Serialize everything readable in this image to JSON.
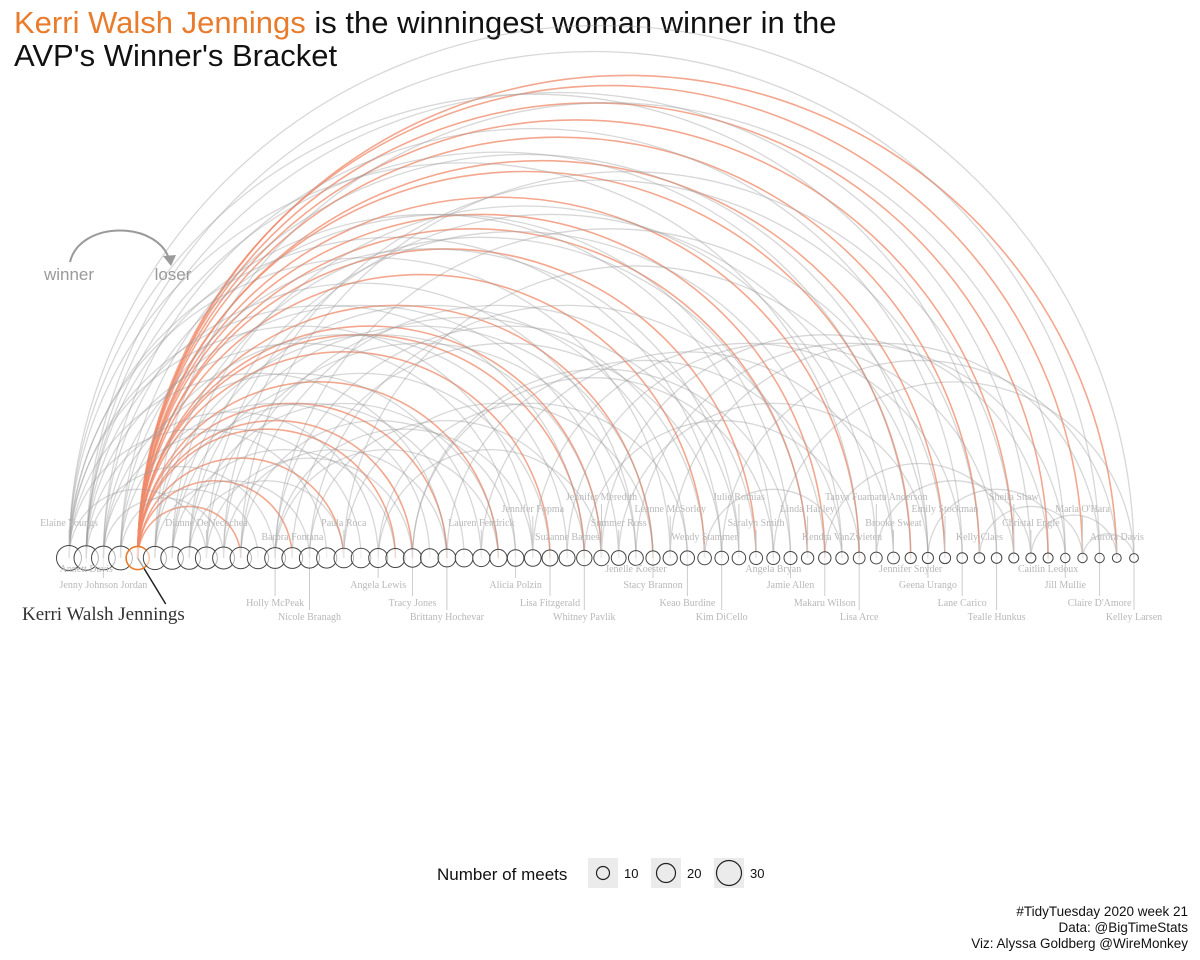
{
  "title": {
    "highlight": "Kerri Walsh Jennings",
    "rest_line1": " is the winningest woman winner in the",
    "line2": "AVP's Winner's Bracket"
  },
  "key": {
    "winner": "winner",
    "loser": "loser"
  },
  "legend": {
    "title": "Number of meets",
    "entries": [
      10,
      20,
      30
    ]
  },
  "caption": {
    "line1": "#TidyTuesday 2020 week 21",
    "line2": "Data: @BigTimeStats",
    "line3": "Viz: Alyssa Goldberg @WireMonkey"
  },
  "colors": {
    "highlight": "#e87c2c",
    "arc_highlight": "#f08a6a",
    "arc": "#9a9a9a",
    "node": "#444444",
    "label": "#b8b8b8"
  },
  "chart_data": {
    "type": "arc-diagram",
    "highlighted_player": "Kerri Walsh Jennings",
    "players": [
      {
        "name": "Elaine Youngs",
        "meets": 30
      },
      {
        "name": "Annett Davis",
        "meets": 29
      },
      {
        "name": "Jenny Johnson Jordan",
        "meets": 28
      },
      {
        "name": "",
        "meets": 28
      },
      {
        "name": "Kerri Walsh Jennings",
        "meets": 27
      },
      {
        "name": "",
        "meets": 27
      },
      {
        "name": "",
        "meets": 26
      },
      {
        "name": "",
        "meets": 26
      },
      {
        "name": "Dianne DeNecochea",
        "meets": 25
      },
      {
        "name": "",
        "meets": 25
      },
      {
        "name": "",
        "meets": 24
      },
      {
        "name": "",
        "meets": 24
      },
      {
        "name": "Holly McPeak",
        "meets": 23
      },
      {
        "name": "Barbra Fontana",
        "meets": 23
      },
      {
        "name": "Nicole Branagh",
        "meets": 22
      },
      {
        "name": "",
        "meets": 22
      },
      {
        "name": "Paula Roca",
        "meets": 21
      },
      {
        "name": "",
        "meets": 21
      },
      {
        "name": "Angela Lewis",
        "meets": 20
      },
      {
        "name": "",
        "meets": 20
      },
      {
        "name": "Tracy Jones",
        "meets": 19
      },
      {
        "name": "",
        "meets": 19
      },
      {
        "name": "Brittany Hochevar",
        "meets": 18
      },
      {
        "name": "",
        "meets": 18
      },
      {
        "name": "Lauren Fendrick",
        "meets": 17
      },
      {
        "name": "",
        "meets": 17
      },
      {
        "name": "Alicia Polzin",
        "meets": 16
      },
      {
        "name": "Jennifer Fopma",
        "meets": 16
      },
      {
        "name": "Lisa Fitzgerald",
        "meets": 15
      },
      {
        "name": "Suzanne Barnes",
        "meets": 15
      },
      {
        "name": "Whitney Pavlik",
        "meets": 14
      },
      {
        "name": "Jennifer Meredith",
        "meets": 14
      },
      {
        "name": "Summer Ross",
        "meets": 13
      },
      {
        "name": "Jenelle Koester",
        "meets": 13
      },
      {
        "name": "Stacy Brannon",
        "meets": 12
      },
      {
        "name": "Leanne McSorley",
        "meets": 12
      },
      {
        "name": "Keao Burdine",
        "meets": 12
      },
      {
        "name": "Wendy Stammer",
        "meets": 11
      },
      {
        "name": "Kim DiCello",
        "meets": 11
      },
      {
        "name": "Julie Romias",
        "meets": 11
      },
      {
        "name": "Saralyn Smith",
        "meets": 10
      },
      {
        "name": "Angela Bryan",
        "meets": 10
      },
      {
        "name": "Jamie Allen",
        "meets": 10
      },
      {
        "name": "Linda Hanley",
        "meets": 9
      },
      {
        "name": "Makaru Wilson",
        "meets": 9
      },
      {
        "name": "Kendra VanZwieten",
        "meets": 9
      },
      {
        "name": "Lisa Arce",
        "meets": 8
      },
      {
        "name": "Tanya Fuamatu Anderson",
        "meets": 8
      },
      {
        "name": "Brooke Sweat",
        "meets": 8
      },
      {
        "name": "Jennifer Snyder",
        "meets": 7
      },
      {
        "name": "Geena Urango",
        "meets": 7
      },
      {
        "name": "Emily Stockman",
        "meets": 7
      },
      {
        "name": "Lane Carico",
        "meets": 6
      },
      {
        "name": "Kelly Claes",
        "meets": 6
      },
      {
        "name": "Tealle Hunkus",
        "meets": 6
      },
      {
        "name": "Sheila Shaw",
        "meets": 5
      },
      {
        "name": "Christal Engle",
        "meets": 5
      },
      {
        "name": "Caitlin Ledoux",
        "meets": 5
      },
      {
        "name": "Jill Mullie",
        "meets": 4
      },
      {
        "name": "Marla O'Hara",
        "meets": 4
      },
      {
        "name": "Claire D'Amore",
        "meets": 4
      },
      {
        "name": "Aurora Davis",
        "meets": 3
      },
      {
        "name": "Kelley Larsen",
        "meets": 3
      }
    ],
    "arcs_source_rank": [
      4,
      4,
      4,
      4,
      4,
      4,
      4,
      4,
      4,
      4,
      4,
      4,
      4,
      4,
      4,
      4,
      4,
      4,
      4,
      4,
      4,
      4,
      4,
      0,
      0,
      0,
      0,
      0,
      0,
      0,
      0,
      0,
      0,
      1,
      1,
      1,
      1,
      1,
      1,
      1,
      1,
      2,
      2,
      2,
      2,
      2,
      2,
      3,
      3,
      3,
      3,
      3,
      5,
      5,
      5,
      5,
      5,
      6,
      6,
      6,
      6,
      7,
      7,
      7,
      7,
      8,
      8,
      8,
      9,
      9,
      9,
      10,
      10,
      10,
      12,
      12,
      12,
      14,
      14,
      16,
      16,
      18,
      20,
      22,
      24,
      27,
      29,
      31,
      33,
      35,
      38,
      41,
      44,
      47,
      50,
      53,
      56,
      59,
      12,
      13,
      18,
      20,
      30,
      32,
      37
    ],
    "arcs_target_rank": [
      10,
      13,
      16,
      19,
      22,
      25,
      28,
      31,
      34,
      37,
      40,
      43,
      46,
      49,
      51,
      53,
      55,
      57,
      59,
      61,
      44,
      30,
      20,
      8,
      15,
      22,
      30,
      38,
      46,
      54,
      62,
      27,
      35,
      12,
      18,
      26,
      33,
      41,
      49,
      56,
      60,
      9,
      17,
      24,
      32,
      42,
      52,
      11,
      21,
      29,
      39,
      50,
      14,
      23,
      31,
      43,
      58,
      19,
      28,
      36,
      47,
      16,
      25,
      34,
      45,
      20,
      33,
      48,
      22,
      37,
      53,
      26,
      40,
      55,
      27,
      39,
      51,
      30,
      44,
      34,
      50,
      36,
      41,
      45,
      48,
      52,
      54,
      57,
      58,
      60,
      61,
      62,
      55,
      56,
      58,
      59,
      61,
      62,
      25,
      38,
      31,
      42,
      46,
      50,
      45
    ]
  }
}
